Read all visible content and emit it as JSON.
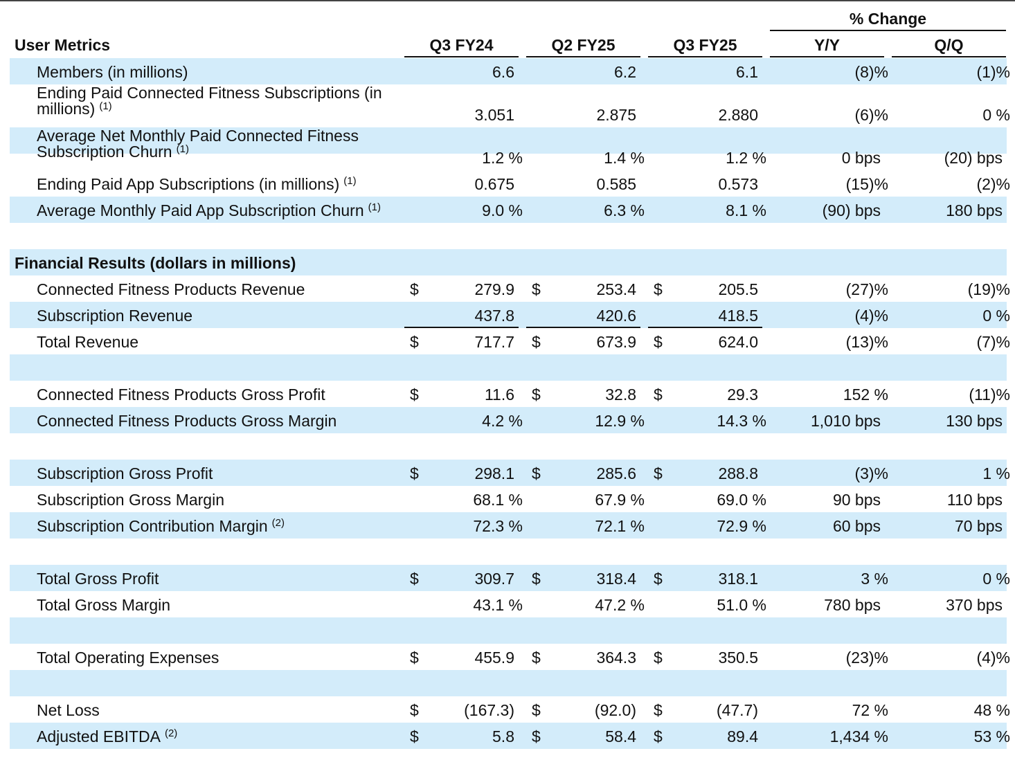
{
  "header": {
    "section_title": "User Metrics",
    "columns": [
      "Q3 FY24",
      "Q2 FY25",
      "Q3 FY25"
    ],
    "change_group": "% Change",
    "change_columns": [
      "Y/Y",
      "Q/Q"
    ]
  },
  "user_metrics": [
    {
      "label": "Members (in millions)",
      "sup": "",
      "q3fy24": "6.6",
      "q2fy25": "6.2",
      "q3fy25": "6.1",
      "yy": "(8)%",
      "qq": "(1)%"
    },
    {
      "label": "Ending Paid Connected Fitness Subscriptions (in",
      "label2": "millions)",
      "sup": "(1)",
      "q3fy24": "3.051",
      "q2fy25": "2.875",
      "q3fy25": "2.880",
      "yy": "(6)%",
      "qq": "0 %"
    },
    {
      "label": "Average Net Monthly Paid Connected Fitness",
      "label2": "Subscription Churn",
      "sup": "(1)",
      "q3fy24": "1.2 %",
      "q2fy25": "1.4 %",
      "q3fy25": "1.2 %",
      "yy": "0 bps",
      "qq": "(20) bps"
    },
    {
      "label": "Ending Paid App Subscriptions (in millions)",
      "sup": "(1)",
      "q3fy24": "0.675",
      "q2fy25": "0.585",
      "q3fy25": "0.573",
      "yy": "(15)%",
      "qq": "(2)%"
    },
    {
      "label": "Average Monthly Paid App Subscription Churn",
      "sup": "(1)",
      "q3fy24": "9.0 %",
      "q2fy25": "6.3 %",
      "q3fy25": "8.1 %",
      "yy": "(90) bps",
      "qq": "180 bps"
    }
  ],
  "financial_title": "Financial Results (dollars in millions)",
  "currency_symbol": "$",
  "financial": [
    {
      "label": "Connected Fitness Products Revenue",
      "sup": "",
      "q3fy24": "279.9",
      "q2fy25": "253.4",
      "q3fy25": "205.5",
      "yy": "(27)%",
      "qq": "(19)%"
    },
    {
      "label": "Subscription Revenue",
      "sup": "",
      "q3fy24": "437.8",
      "q2fy25": "420.6",
      "q3fy25": "418.5",
      "yy": "(4)%",
      "qq": "0 %"
    },
    {
      "label": "Total Revenue",
      "sup": "",
      "q3fy24": "717.7",
      "q2fy25": "673.9",
      "q3fy25": "624.0",
      "yy": "(13)%",
      "qq": "(7)%"
    },
    {
      "label": "Connected Fitness Products Gross Profit",
      "sup": "",
      "q3fy24": "11.6",
      "q2fy25": "32.8",
      "q3fy25": "29.3",
      "yy": "152 %",
      "qq": "(11)%"
    },
    {
      "label": "Connected Fitness Products Gross Margin",
      "sup": "",
      "q3fy24": "4.2 %",
      "q2fy25": "12.9 %",
      "q3fy25": "14.3 %",
      "yy": "1,010 bps",
      "qq": "130 bps"
    },
    {
      "label": "Subscription Gross Profit",
      "sup": "",
      "q3fy24": "298.1",
      "q2fy25": "285.6",
      "q3fy25": "288.8",
      "yy": "(3)%",
      "qq": "1 %"
    },
    {
      "label": "Subscription Gross Margin",
      "sup": "",
      "q3fy24": "68.1 %",
      "q2fy25": "67.9 %",
      "q3fy25": "69.0 %",
      "yy": "90 bps",
      "qq": "110 bps"
    },
    {
      "label": "Subscription Contribution Margin",
      "sup": "(2)",
      "q3fy24": "72.3 %",
      "q2fy25": "72.1 %",
      "q3fy25": "72.9 %",
      "yy": "60 bps",
      "qq": "70 bps"
    },
    {
      "label": "Total Gross Profit",
      "sup": "",
      "q3fy24": "309.7",
      "q2fy25": "318.4",
      "q3fy25": "318.1",
      "yy": "3 %",
      "qq": "0 %"
    },
    {
      "label": "Total Gross Margin",
      "sup": "",
      "q3fy24": "43.1 %",
      "q2fy25": "47.2 %",
      "q3fy25": "51.0 %",
      "yy": "780 bps",
      "qq": "370 bps"
    },
    {
      "label": "Total Operating Expenses",
      "sup": "",
      "q3fy24": "455.9",
      "q2fy25": "364.3",
      "q3fy25": "350.5",
      "yy": "(23)%",
      "qq": "(4)%"
    },
    {
      "label": "Net Loss",
      "sup": "",
      "q3fy24": "(167.3)",
      "q2fy25": "(92.0)",
      "q3fy25": "(47.7)",
      "yy": "72 %",
      "qq": "48 %"
    },
    {
      "label": "Adjusted EBITDA",
      "sup": "(2)",
      "q3fy24": "5.8",
      "q2fy25": "58.4",
      "q3fy25": "89.4",
      "yy": "1,434 %",
      "qq": "53 %"
    }
  ]
}
